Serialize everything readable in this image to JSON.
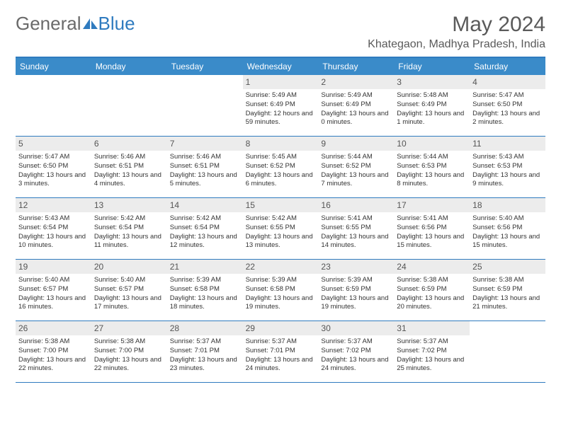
{
  "logo": {
    "text1": "General",
    "text2": "Blue"
  },
  "title": "May 2024",
  "location": "Khategaon, Madhya Pradesh, India",
  "colors": {
    "header_bg": "#3a8bc9",
    "border": "#2f7bbf",
    "daynum_bg": "#ececec",
    "text": "#333333",
    "title_text": "#5a5a5a"
  },
  "weekdays": [
    "Sunday",
    "Monday",
    "Tuesday",
    "Wednesday",
    "Thursday",
    "Friday",
    "Saturday"
  ],
  "weeks": [
    [
      {
        "n": "",
        "sr": "",
        "ss": "",
        "dl": ""
      },
      {
        "n": "",
        "sr": "",
        "ss": "",
        "dl": ""
      },
      {
        "n": "",
        "sr": "",
        "ss": "",
        "dl": ""
      },
      {
        "n": "1",
        "sr": "Sunrise: 5:49 AM",
        "ss": "Sunset: 6:49 PM",
        "dl": "Daylight: 12 hours and 59 minutes."
      },
      {
        "n": "2",
        "sr": "Sunrise: 5:49 AM",
        "ss": "Sunset: 6:49 PM",
        "dl": "Daylight: 13 hours and 0 minutes."
      },
      {
        "n": "3",
        "sr": "Sunrise: 5:48 AM",
        "ss": "Sunset: 6:49 PM",
        "dl": "Daylight: 13 hours and 1 minute."
      },
      {
        "n": "4",
        "sr": "Sunrise: 5:47 AM",
        "ss": "Sunset: 6:50 PM",
        "dl": "Daylight: 13 hours and 2 minutes."
      }
    ],
    [
      {
        "n": "5",
        "sr": "Sunrise: 5:47 AM",
        "ss": "Sunset: 6:50 PM",
        "dl": "Daylight: 13 hours and 3 minutes."
      },
      {
        "n": "6",
        "sr": "Sunrise: 5:46 AM",
        "ss": "Sunset: 6:51 PM",
        "dl": "Daylight: 13 hours and 4 minutes."
      },
      {
        "n": "7",
        "sr": "Sunrise: 5:46 AM",
        "ss": "Sunset: 6:51 PM",
        "dl": "Daylight: 13 hours and 5 minutes."
      },
      {
        "n": "8",
        "sr": "Sunrise: 5:45 AM",
        "ss": "Sunset: 6:52 PM",
        "dl": "Daylight: 13 hours and 6 minutes."
      },
      {
        "n": "9",
        "sr": "Sunrise: 5:44 AM",
        "ss": "Sunset: 6:52 PM",
        "dl": "Daylight: 13 hours and 7 minutes."
      },
      {
        "n": "10",
        "sr": "Sunrise: 5:44 AM",
        "ss": "Sunset: 6:53 PM",
        "dl": "Daylight: 13 hours and 8 minutes."
      },
      {
        "n": "11",
        "sr": "Sunrise: 5:43 AM",
        "ss": "Sunset: 6:53 PM",
        "dl": "Daylight: 13 hours and 9 minutes."
      }
    ],
    [
      {
        "n": "12",
        "sr": "Sunrise: 5:43 AM",
        "ss": "Sunset: 6:54 PM",
        "dl": "Daylight: 13 hours and 10 minutes."
      },
      {
        "n": "13",
        "sr": "Sunrise: 5:42 AM",
        "ss": "Sunset: 6:54 PM",
        "dl": "Daylight: 13 hours and 11 minutes."
      },
      {
        "n": "14",
        "sr": "Sunrise: 5:42 AM",
        "ss": "Sunset: 6:54 PM",
        "dl": "Daylight: 13 hours and 12 minutes."
      },
      {
        "n": "15",
        "sr": "Sunrise: 5:42 AM",
        "ss": "Sunset: 6:55 PM",
        "dl": "Daylight: 13 hours and 13 minutes."
      },
      {
        "n": "16",
        "sr": "Sunrise: 5:41 AM",
        "ss": "Sunset: 6:55 PM",
        "dl": "Daylight: 13 hours and 14 minutes."
      },
      {
        "n": "17",
        "sr": "Sunrise: 5:41 AM",
        "ss": "Sunset: 6:56 PM",
        "dl": "Daylight: 13 hours and 15 minutes."
      },
      {
        "n": "18",
        "sr": "Sunrise: 5:40 AM",
        "ss": "Sunset: 6:56 PM",
        "dl": "Daylight: 13 hours and 15 minutes."
      }
    ],
    [
      {
        "n": "19",
        "sr": "Sunrise: 5:40 AM",
        "ss": "Sunset: 6:57 PM",
        "dl": "Daylight: 13 hours and 16 minutes."
      },
      {
        "n": "20",
        "sr": "Sunrise: 5:40 AM",
        "ss": "Sunset: 6:57 PM",
        "dl": "Daylight: 13 hours and 17 minutes."
      },
      {
        "n": "21",
        "sr": "Sunrise: 5:39 AM",
        "ss": "Sunset: 6:58 PM",
        "dl": "Daylight: 13 hours and 18 minutes."
      },
      {
        "n": "22",
        "sr": "Sunrise: 5:39 AM",
        "ss": "Sunset: 6:58 PM",
        "dl": "Daylight: 13 hours and 19 minutes."
      },
      {
        "n": "23",
        "sr": "Sunrise: 5:39 AM",
        "ss": "Sunset: 6:59 PM",
        "dl": "Daylight: 13 hours and 19 minutes."
      },
      {
        "n": "24",
        "sr": "Sunrise: 5:38 AM",
        "ss": "Sunset: 6:59 PM",
        "dl": "Daylight: 13 hours and 20 minutes."
      },
      {
        "n": "25",
        "sr": "Sunrise: 5:38 AM",
        "ss": "Sunset: 6:59 PM",
        "dl": "Daylight: 13 hours and 21 minutes."
      }
    ],
    [
      {
        "n": "26",
        "sr": "Sunrise: 5:38 AM",
        "ss": "Sunset: 7:00 PM",
        "dl": "Daylight: 13 hours and 22 minutes."
      },
      {
        "n": "27",
        "sr": "Sunrise: 5:38 AM",
        "ss": "Sunset: 7:00 PM",
        "dl": "Daylight: 13 hours and 22 minutes."
      },
      {
        "n": "28",
        "sr": "Sunrise: 5:37 AM",
        "ss": "Sunset: 7:01 PM",
        "dl": "Daylight: 13 hours and 23 minutes."
      },
      {
        "n": "29",
        "sr": "Sunrise: 5:37 AM",
        "ss": "Sunset: 7:01 PM",
        "dl": "Daylight: 13 hours and 24 minutes."
      },
      {
        "n": "30",
        "sr": "Sunrise: 5:37 AM",
        "ss": "Sunset: 7:02 PM",
        "dl": "Daylight: 13 hours and 24 minutes."
      },
      {
        "n": "31",
        "sr": "Sunrise: 5:37 AM",
        "ss": "Sunset: 7:02 PM",
        "dl": "Daylight: 13 hours and 25 minutes."
      },
      {
        "n": "",
        "sr": "",
        "ss": "",
        "dl": ""
      }
    ]
  ]
}
